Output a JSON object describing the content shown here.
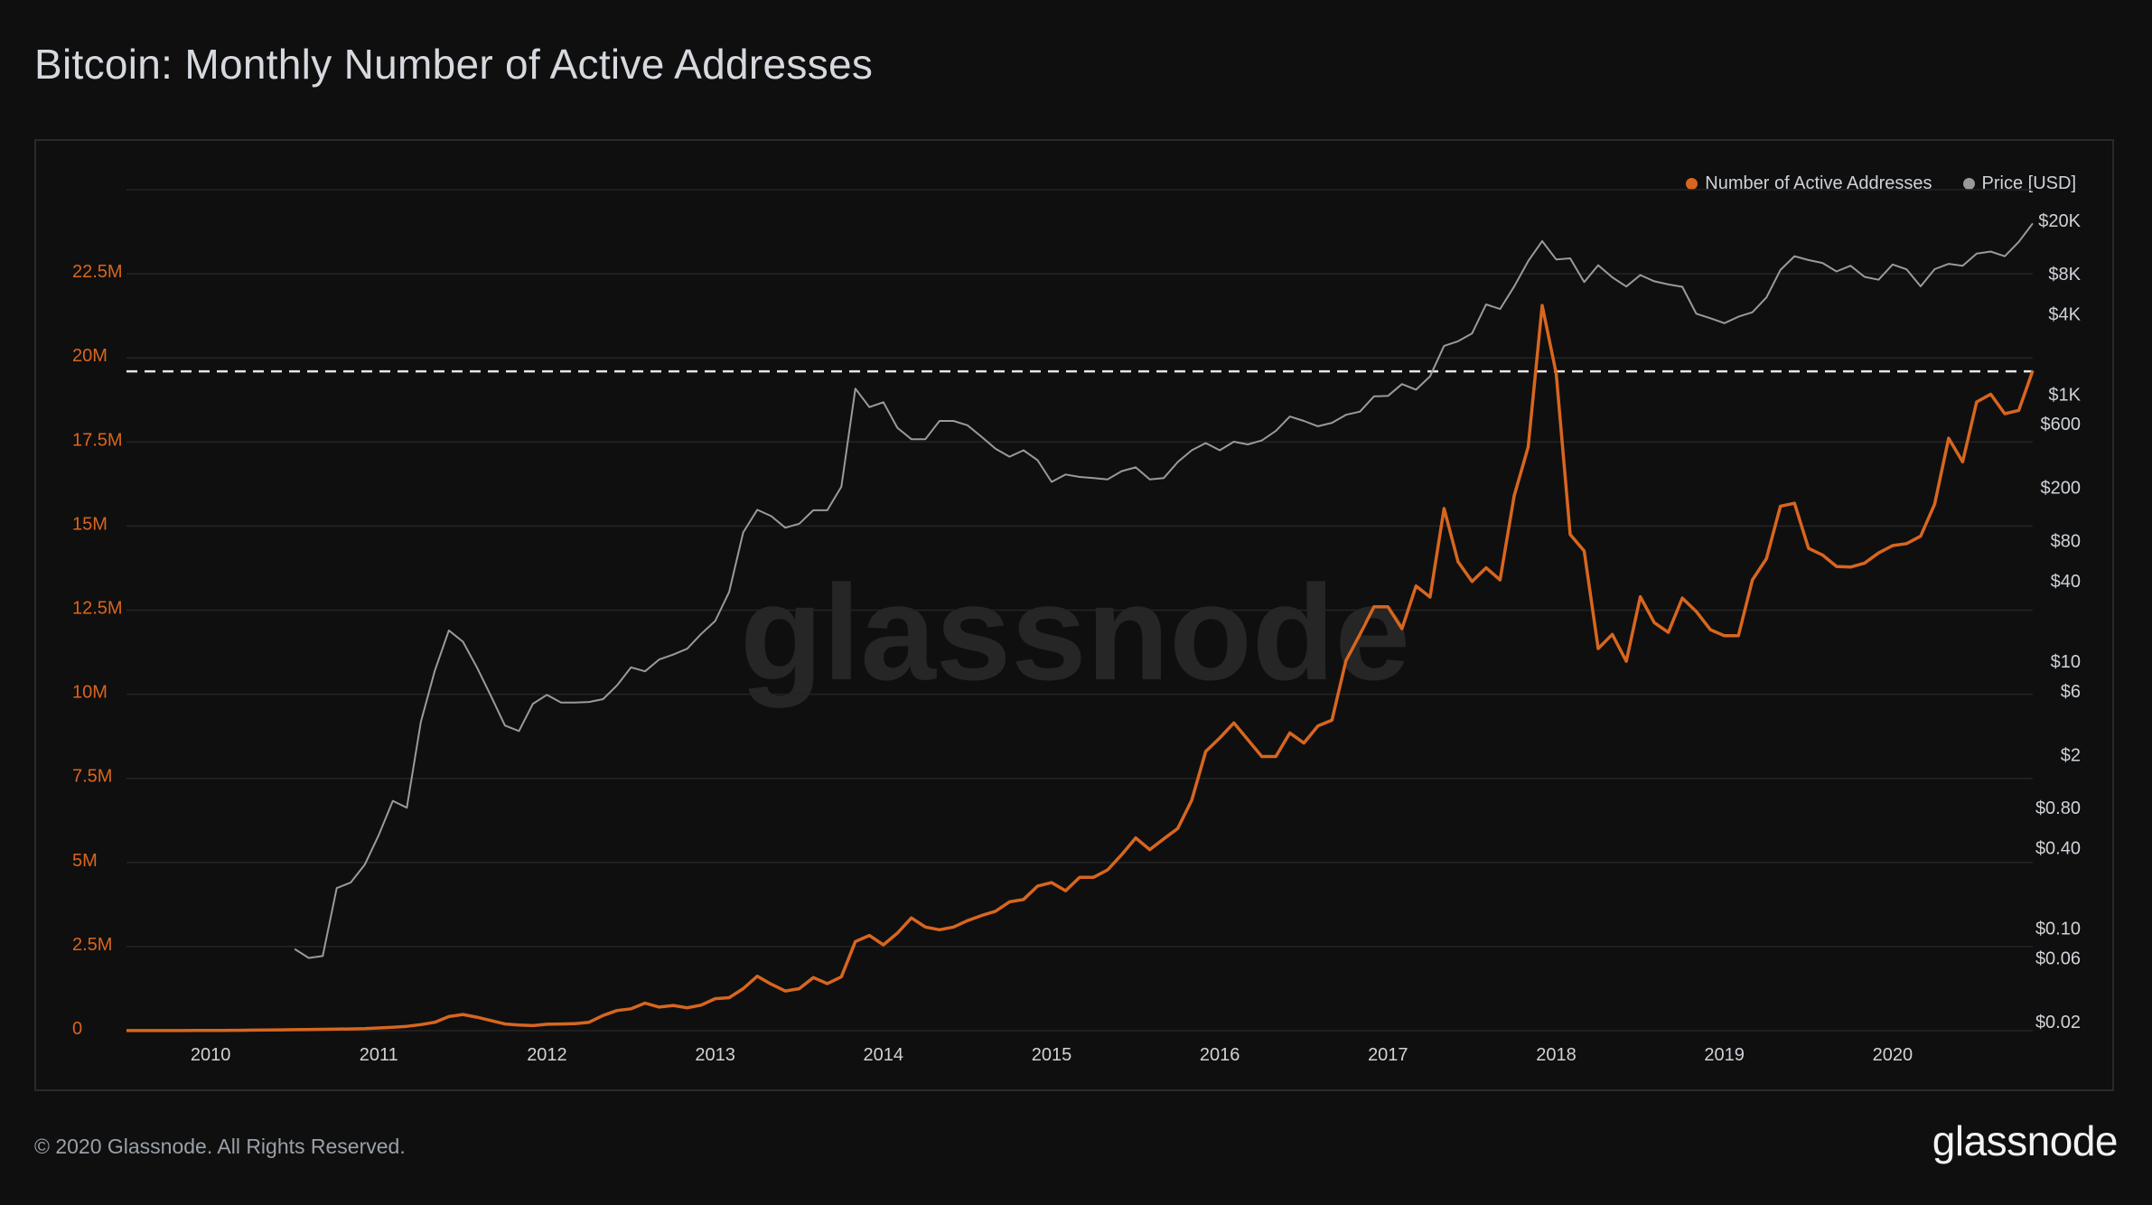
{
  "title": "Bitcoin: Monthly Number of Active Addresses",
  "footer": "© 2020 Glassnode. All Rights Reserved.",
  "logo": "glassnode",
  "watermark": "glassnode",
  "colors": {
    "addresses": "#d8661f",
    "price": "#9a9a9a",
    "background": "#0f0f0f",
    "grid": "#242424"
  },
  "legend": {
    "addresses": "Number of Active Addresses",
    "price": "Price [USD]"
  },
  "chart_data": {
    "type": "line",
    "x_ticks": [
      "2010",
      "2011",
      "2012",
      "2013",
      "2014",
      "2015",
      "2016",
      "2017",
      "2018",
      "2019",
      "2020"
    ],
    "y_left_ticks": [
      "0",
      "2.5M",
      "5M",
      "7.5M",
      "10M",
      "12.5M",
      "15M",
      "17.5M",
      "20M",
      "22.5M"
    ],
    "y_right_ticks": [
      "$20K",
      "$8K",
      "$4K",
      "$1K",
      "$600",
      "$200",
      "$80",
      "$40",
      "$10",
      "$6",
      "$2",
      "$0.80",
      "$0.40",
      "$0.10",
      "$0.06",
      "$0.02"
    ],
    "y_left_range": [
      0,
      25000000
    ],
    "y_right_scale": "log",
    "x_range": [
      "2009-07",
      "2020-11"
    ],
    "reference_line": {
      "value": 19600000,
      "style": "dashed"
    },
    "series": [
      {
        "name": "Number of Active Addresses",
        "axis": "left",
        "x": [
          "2009-07",
          "2009-08",
          "2009-09",
          "2009-10",
          "2009-11",
          "2009-12",
          "2010-01",
          "2010-02",
          "2010-03",
          "2010-04",
          "2010-05",
          "2010-06",
          "2010-07",
          "2010-08",
          "2010-09",
          "2010-10",
          "2010-11",
          "2010-12",
          "2011-01",
          "2011-02",
          "2011-03",
          "2011-04",
          "2011-05",
          "2011-06",
          "2011-07",
          "2011-08",
          "2011-09",
          "2011-10",
          "2011-11",
          "2011-12",
          "2012-01",
          "2012-02",
          "2012-03",
          "2012-04",
          "2012-05",
          "2012-06",
          "2012-07",
          "2012-08",
          "2012-09",
          "2012-10",
          "2012-11",
          "2012-12",
          "2013-01",
          "2013-02",
          "2013-03",
          "2013-04",
          "2013-05",
          "2013-06",
          "2013-07",
          "2013-08",
          "2013-09",
          "2013-10",
          "2013-11",
          "2013-12",
          "2014-01",
          "2014-02",
          "2014-03",
          "2014-04",
          "2014-05",
          "2014-06",
          "2014-07",
          "2014-08",
          "2014-09",
          "2014-10",
          "2014-11",
          "2014-12",
          "2015-01",
          "2015-02",
          "2015-03",
          "2015-04",
          "2015-05",
          "2015-06",
          "2015-07",
          "2015-08",
          "2015-09",
          "2015-10",
          "2015-11",
          "2015-12",
          "2016-01",
          "2016-02",
          "2016-03",
          "2016-04",
          "2016-05",
          "2016-06",
          "2016-07",
          "2016-08",
          "2016-09",
          "2016-10",
          "2016-11",
          "2016-12",
          "2017-01",
          "2017-02",
          "2017-03",
          "2017-04",
          "2017-05",
          "2017-06",
          "2017-07",
          "2017-08",
          "2017-09",
          "2017-10",
          "2017-11",
          "2017-12",
          "2018-01",
          "2018-02",
          "2018-03",
          "2018-04",
          "2018-05",
          "2018-06",
          "2018-07",
          "2018-08",
          "2018-09",
          "2018-10",
          "2018-11",
          "2018-12",
          "2019-01",
          "2019-02",
          "2019-03",
          "2019-04",
          "2019-05",
          "2019-06",
          "2019-07",
          "2019-08",
          "2019-09",
          "2019-10",
          "2019-11",
          "2019-12",
          "2020-01",
          "2020-02",
          "2020-03",
          "2020-04",
          "2020-05",
          "2020-06",
          "2020-07",
          "2020-08",
          "2020-09",
          "2020-10",
          "2020-11"
        ],
        "values": [
          2000,
          2000,
          3000,
          3000,
          4000,
          5000,
          6000,
          8000,
          10000,
          15000,
          20000,
          25000,
          30000,
          35000,
          40000,
          45000,
          50000,
          60000,
          80000,
          100000,
          130000,
          180000,
          250000,
          420000,
          480000,
          400000,
          300000,
          200000,
          170000,
          150000,
          190000,
          200000,
          210000,
          250000,
          450000,
          600000,
          650000,
          820000,
          700000,
          750000,
          680000,
          760000,
          950000,
          980000,
          1250000,
          1620000,
          1380000,
          1180000,
          1250000,
          1580000,
          1400000,
          1600000,
          2650000,
          2830000,
          2550000,
          2900000,
          3350000,
          3080000,
          3000000,
          3080000,
          3270000,
          3420000,
          3550000,
          3830000,
          3900000,
          4300000,
          4400000,
          4160000,
          4560000,
          4560000,
          4780000,
          5230000,
          5730000,
          5380000,
          5700000,
          6010000,
          6850000,
          8300000,
          8700000,
          9150000,
          8650000,
          8150000,
          8150000,
          8850000,
          8550000,
          9060000,
          9230000,
          11000000,
          11780000,
          12600000,
          12600000,
          11950000,
          13220000,
          12890000,
          15520000,
          13940000,
          13350000,
          13760000,
          13400000,
          15900000,
          17350000,
          21560000,
          19540000,
          14750000,
          14260000,
          11360000,
          11780000,
          10980000,
          12900000,
          12130000,
          11840000,
          12860000,
          12460000,
          11920000,
          11740000,
          11740000,
          13400000,
          14030000,
          15590000,
          15680000,
          14340000,
          14140000,
          13800000,
          13780000,
          13900000,
          14200000,
          14420000,
          14480000,
          14700000,
          15650000,
          17610000,
          16910000,
          18690000,
          18920000,
          18340000,
          18440000,
          19620000
        ]
      },
      {
        "name": "Price [USD]",
        "axis": "right",
        "x": [
          "2010-07",
          "2010-08",
          "2010-09",
          "2010-10",
          "2010-11",
          "2010-12",
          "2011-01",
          "2011-02",
          "2011-03",
          "2011-04",
          "2011-05",
          "2011-06",
          "2011-07",
          "2011-08",
          "2011-09",
          "2011-10",
          "2011-11",
          "2011-12",
          "2012-01",
          "2012-02",
          "2012-03",
          "2012-04",
          "2012-05",
          "2012-06",
          "2012-07",
          "2012-08",
          "2012-09",
          "2012-10",
          "2012-11",
          "2012-12",
          "2013-01",
          "2013-02",
          "2013-03",
          "2013-04",
          "2013-05",
          "2013-06",
          "2013-07",
          "2013-08",
          "2013-09",
          "2013-10",
          "2013-11",
          "2013-12",
          "2014-01",
          "2014-02",
          "2014-03",
          "2014-04",
          "2014-05",
          "2014-06",
          "2014-07",
          "2014-08",
          "2014-09",
          "2014-10",
          "2014-11",
          "2014-12",
          "2015-01",
          "2015-02",
          "2015-03",
          "2015-04",
          "2015-05",
          "2015-06",
          "2015-07",
          "2015-08",
          "2015-09",
          "2015-10",
          "2015-11",
          "2015-12",
          "2016-01",
          "2016-02",
          "2016-03",
          "2016-04",
          "2016-05",
          "2016-06",
          "2016-07",
          "2016-08",
          "2016-09",
          "2016-10",
          "2016-11",
          "2016-12",
          "2017-01",
          "2017-02",
          "2017-03",
          "2017-04",
          "2017-05",
          "2017-06",
          "2017-07",
          "2017-08",
          "2017-09",
          "2017-10",
          "2017-11",
          "2017-12",
          "2018-01",
          "2018-02",
          "2018-03",
          "2018-04",
          "2018-05",
          "2018-06",
          "2018-07",
          "2018-08",
          "2018-09",
          "2018-10",
          "2018-11",
          "2018-12",
          "2019-01",
          "2019-02",
          "2019-03",
          "2019-04",
          "2019-05",
          "2019-06",
          "2019-07",
          "2019-08",
          "2019-09",
          "2019-10",
          "2019-11",
          "2019-12",
          "2020-01",
          "2020-02",
          "2020-03",
          "2020-04",
          "2020-05",
          "2020-06",
          "2020-07",
          "2020-08",
          "2020-09",
          "2020-10",
          "2020-11"
        ],
        "values": [
          0.07,
          0.06,
          0.062,
          0.2,
          0.22,
          0.3,
          0.5,
          0.9,
          0.8,
          3.5,
          8.5,
          17,
          14,
          9,
          5.5,
          3.3,
          3,
          4.8,
          5.6,
          4.9,
          4.9,
          4.95,
          5.2,
          6.6,
          9,
          8.4,
          10.3,
          11.2,
          12.4,
          16,
          20,
          33,
          92,
          136,
          122,
          100,
          107,
          135,
          135,
          203,
          1100,
          800,
          870,
          560,
          460,
          460,
          630,
          630,
          585,
          480,
          390,
          340,
          380,
          320,
          220,
          250,
          240,
          235,
          230,
          265,
          283,
          230,
          235,
          310,
          380,
          430,
          380,
          440,
          420,
          450,
          530,
          680,
          630,
          575,
          610,
          700,
          740,
          963,
          970,
          1190,
          1080,
          1360,
          2300,
          2490,
          2850,
          4700,
          4340,
          6400,
          9900,
          14000,
          10200,
          10400,
          6900,
          9240,
          7500,
          6400,
          7800,
          7000,
          6630,
          6370,
          4000,
          3700,
          3400,
          3800,
          4100,
          5300,
          8500,
          10800,
          10100,
          9600,
          8300,
          9150,
          7560,
          7190,
          9350,
          8600,
          6420,
          8620,
          9450,
          9140,
          11300,
          11680,
          10780,
          13800,
          19000
        ]
      }
    ]
  }
}
